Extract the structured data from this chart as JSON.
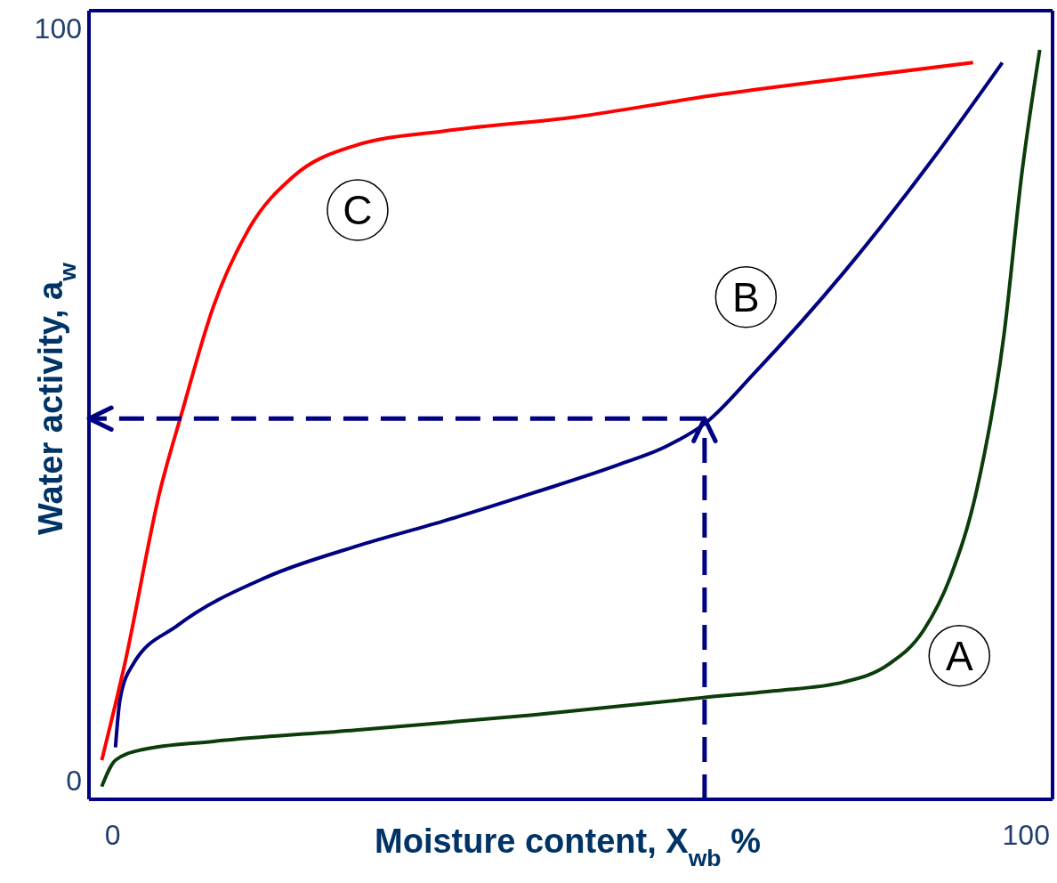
{
  "chart_data": {
    "type": "line",
    "xlabel": "Moisture content, X$_{wb}$ %",
    "ylabel": "Water activity, a$_{w}$",
    "xlim": [
      -2.6,
      102.9
    ],
    "ylim": [
      -2.5,
      102.3
    ],
    "xticks": [
      0,
      100
    ],
    "yticks": [
      0,
      100
    ],
    "marker": "none",
    "line_style": "solid",
    "series": [
      {
        "name": "A",
        "color": "#0b3d0b",
        "x": [
          -1.2,
          0.3,
          3.2,
          11.0,
          26.6,
          46.0,
          64.5,
          72.3,
          80.1,
          84.9,
          88.8,
          91.7,
          94.6,
          97.6,
          99.5,
          101.5
        ],
        "values": [
          -0.8,
          2.7,
          4.1,
          5.2,
          6.7,
          8.7,
          11.0,
          11.9,
          13.1,
          15.4,
          20.0,
          27.0,
          38.6,
          59.4,
          80.3,
          97.1
        ]
      },
      {
        "name": "B",
        "color": "#000080",
        "x": [
          0.3,
          0.8,
          2.2,
          7.1,
          16.8,
          26.6,
          36.3,
          46.0,
          55.7,
          60.6,
          65.0,
          70.3,
          80.1,
          89.8,
          97.4
        ],
        "values": [
          4.4,
          10.8,
          15.4,
          20.6,
          27.0,
          31.1,
          34.5,
          38.2,
          42.1,
          44.4,
          47.6,
          54.2,
          67.6,
          82.6,
          95.4
        ]
      },
      {
        "name": "C",
        "color": "#ff0000",
        "x": [
          -1.2,
          1.3,
          5.2,
          7.6,
          11.0,
          14.9,
          19.8,
          26.6,
          36.3,
          50.8,
          65.5,
          80.1,
          94.2
        ],
        "values": [
          2.7,
          15.4,
          38.6,
          49.0,
          62.9,
          73.3,
          80.3,
          84.4,
          86.3,
          88.2,
          91.0,
          93.3,
          95.4
        ]
      }
    ],
    "ref_lines": [
      {
        "axis": "x",
        "value": 64.8,
        "color": "#000080",
        "line_style": "dashed"
      },
      {
        "axis": "y",
        "value": 48.1,
        "color": "#000080",
        "line_style": "dashed"
      }
    ]
  }
}
